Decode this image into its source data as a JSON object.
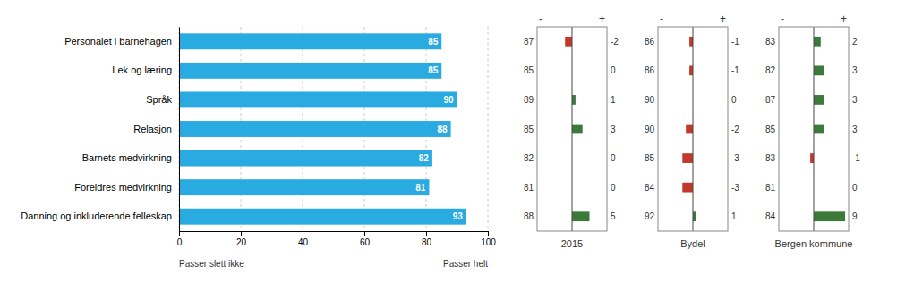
{
  "chart_data": [
    {
      "type": "bar",
      "orientation": "horizontal",
      "categories": [
        "Personalet i barnehagen",
        "Lek og læring",
        "Språk",
        "Relasjon",
        "Barnets medvirkning",
        "Foreldres medvirkning",
        "Danning og inkluderende felleskap"
      ],
      "values": [
        85,
        85,
        90,
        88,
        82,
        81,
        93
      ],
      "color": "#29ABE2",
      "xlim": [
        0,
        100
      ],
      "xticks": [
        0,
        20,
        40,
        60,
        80,
        100
      ],
      "grid": true,
      "data_labels": true,
      "annotations": [
        "Passer slett ikke",
        "Passer helt"
      ]
    },
    {
      "type": "bar",
      "orientation": "horizontal",
      "title": "2015",
      "values": [
        -2,
        0,
        1,
        3,
        0,
        0,
        5
      ],
      "scores": [
        87,
        85,
        89,
        85,
        82,
        81,
        88
      ],
      "colors": [
        "#C0392B",
        "#3B7A3B",
        "#3B7A3B",
        "#3B7A3B",
        "#3B7A3B",
        "#3B7A3B",
        "#3B7A3B"
      ],
      "xlim": [
        -10,
        10
      ],
      "tick_labels": false,
      "data_labels": true,
      "annotations": [
        "-",
        "+"
      ]
    },
    {
      "type": "bar",
      "orientation": "horizontal",
      "title": "Bydel",
      "values": [
        -1,
        -1,
        0,
        -2,
        -3,
        -3,
        1
      ],
      "scores": [
        86,
        86,
        90,
        90,
        85,
        84,
        92
      ],
      "colors": [
        "#C0392B",
        "#C0392B",
        "#3B7A3B",
        "#C0392B",
        "#C0392B",
        "#C0392B",
        "#3B7A3B"
      ],
      "xlim": [
        -10,
        10
      ],
      "tick_labels": false,
      "data_labels": true,
      "annotations": [
        "-",
        "+"
      ]
    },
    {
      "type": "bar",
      "orientation": "horizontal",
      "title": "Bergen kommune",
      "values": [
        2,
        3,
        3,
        3,
        -1,
        0,
        9
      ],
      "scores": [
        83,
        82,
        87,
        85,
        83,
        81,
        84
      ],
      "colors": [
        "#3B7A3B",
        "#3B7A3B",
        "#3B7A3B",
        "#3B7A3B",
        "#C0392B",
        "#3B7A3B",
        "#3B7A3B"
      ],
      "xlim": [
        -10,
        10
      ],
      "tick_labels": false,
      "data_labels": true,
      "annotations": [
        "-",
        "+"
      ]
    }
  ]
}
